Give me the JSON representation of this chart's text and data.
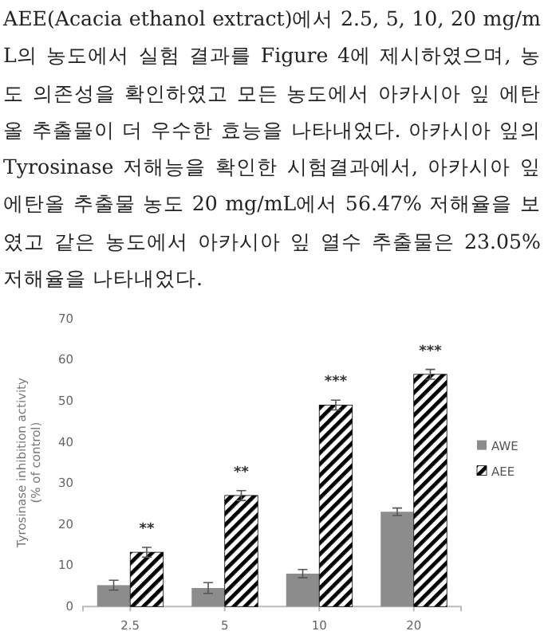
{
  "chart_data": {
    "type": "bar",
    "categories": [
      "2.5",
      "5",
      "10",
      "20"
    ],
    "ylabel": "Tyrosinase inhibition activity\n(% of control)",
    "ylim": [
      0,
      70
    ],
    "yticks": [
      0,
      10,
      20,
      30,
      40,
      50,
      60,
      70
    ],
    "grid": false,
    "legend": "right",
    "series": [
      {
        "name": "AWE",
        "color": "#8c8c8c",
        "values": [
          5.2,
          4.5,
          8,
          23.05
        ],
        "errors": [
          1.2,
          1.3,
          1,
          0.9
        ]
      },
      {
        "name": "AEE",
        "color": "#000000",
        "values": [
          13.2,
          27,
          49,
          56.47
        ],
        "errors": [
          1.2,
          1.2,
          1.2,
          1.2
        ]
      }
    ],
    "annotations": [
      "AEE(Acacia ethanol extract)에서 2.5, 5, 10, 20 mg/mL의 농도에서 실험 결과를 Figure 4에 제시하였으며, 농도 의존성을 확인하였고 모든 농도에서 아카시아 잎 에탄올 추출물이 더 우수한 효능을 나타내었다. 아카시아 잎의 Tyrosinase 저해능을 확인한 시험결과에서, 아카시아 잎 에탄올 추출물 농도 20 mg/mL에서 56.47% 저해율을 보였고 같은 농도에서 아카시아 잎 열수 추출물은 23.05% 저해율을 나타내었다.",
      {
        "text": "**",
        "x": "2.5",
        "y": 13.2
      },
      {
        "text": "**",
        "x": "5",
        "y": 27
      },
      {
        "text": "***",
        "x": "10",
        "y": 49
      },
      {
        "text": "***",
        "x": "20",
        "y": 56.47
      }
    ]
  }
}
